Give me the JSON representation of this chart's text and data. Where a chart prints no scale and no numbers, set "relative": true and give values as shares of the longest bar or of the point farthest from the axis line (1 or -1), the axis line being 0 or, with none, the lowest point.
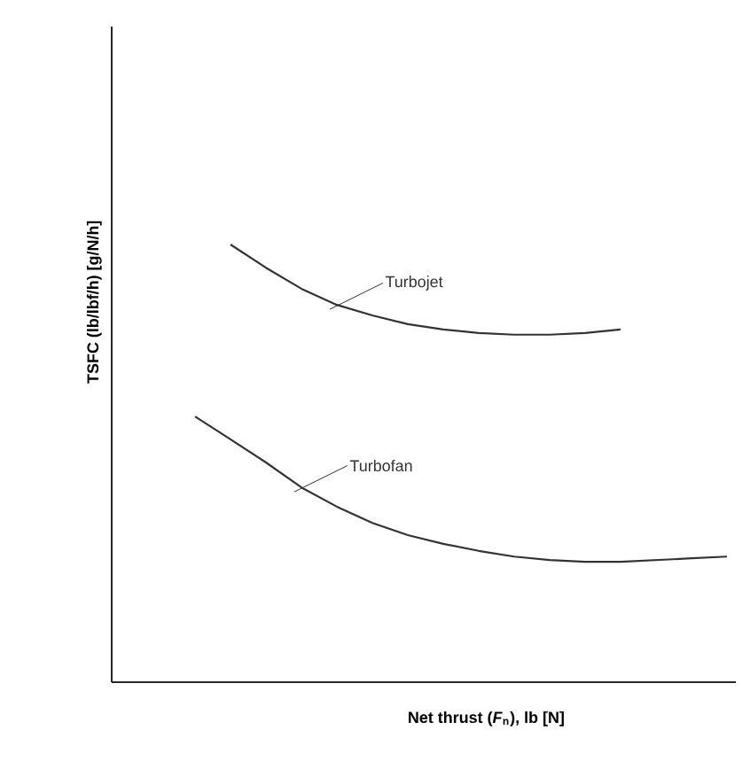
{
  "chart_data": {
    "type": "line",
    "relative": true,
    "xlabel": "Net thrust (*F*$_{n}$), lb [N]",
    "ylabel": "TSFC (lb/lbf/h) [g/N/h]",
    "categories": [
      null,
      null,
      null,
      null,
      null,
      null,
      null,
      null,
      null,
      null,
      null,
      null,
      null,
      null,
      null,
      null
    ],
    "series": [
      {
        "name": "Turbojet",
        "color": "#333333",
        "values": [
          null,
          1,
          0.947,
          0.899,
          0.862,
          0.838,
          0.818,
          0.806,
          0.798,
          0.794,
          0.794,
          0.798,
          0.806,
          null,
          null,
          null
        ]
      },
      {
        "name": "Turbofan",
        "color": "#333333",
        "values": [
          0.607,
          0.555,
          0.502,
          0.445,
          0.401,
          0.364,
          0.336,
          0.316,
          0.3,
          0.287,
          0.279,
          0.275,
          0.275,
          0.279,
          0.283,
          0.287
        ]
      }
    ]
  }
}
